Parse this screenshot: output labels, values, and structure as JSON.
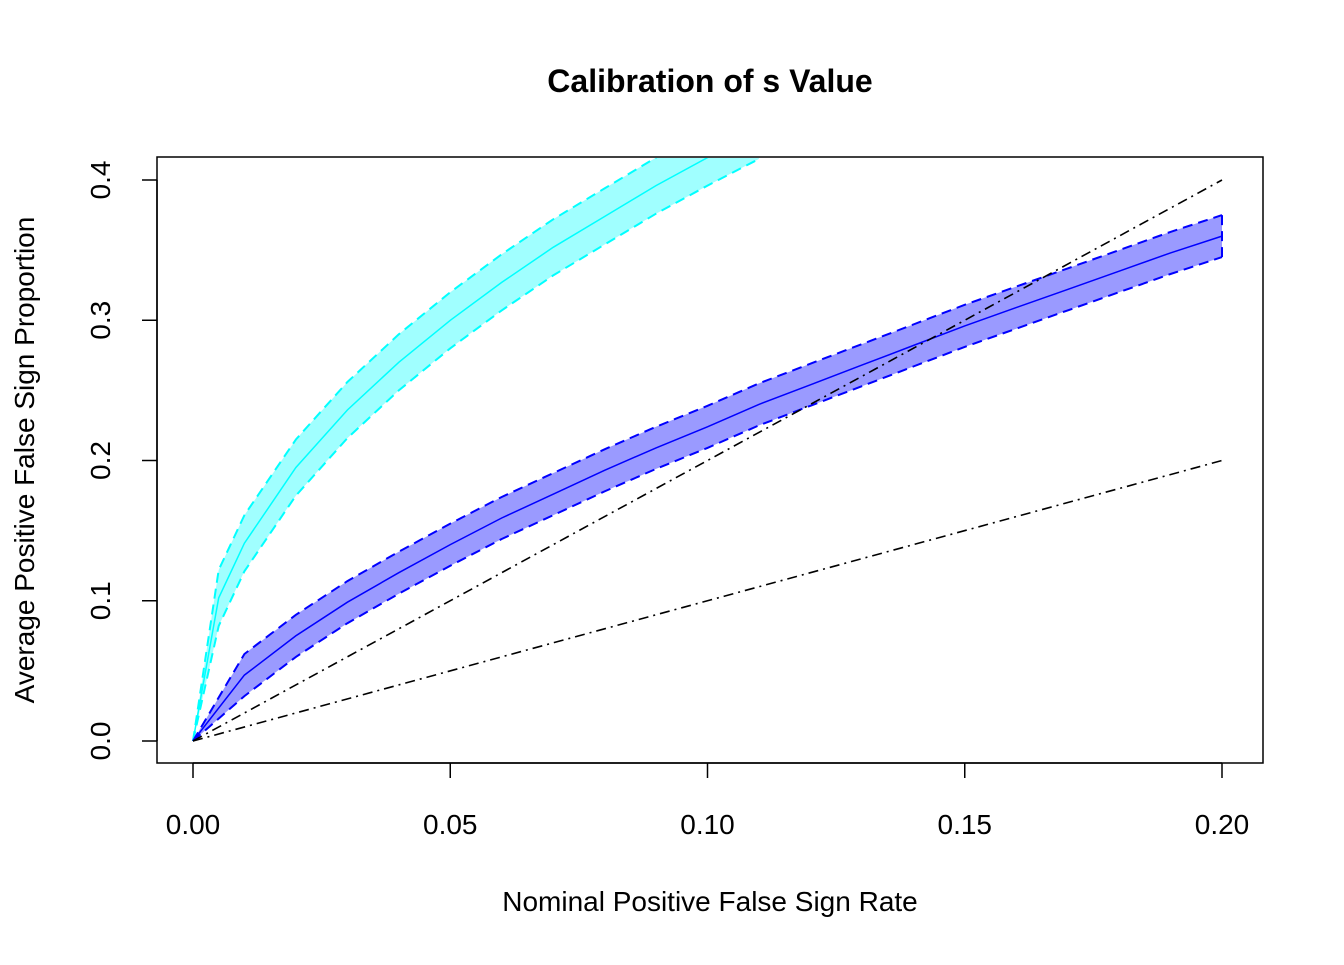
{
  "chart_data": {
    "type": "line",
    "title": "Calibration of s Value",
    "xlabel": "Nominal Positive False Sign Rate",
    "ylabel": "Average Positive False Sign Proportion",
    "xlim": [
      0,
      0.2
    ],
    "ylim": [
      0,
      0.4
    ],
    "x_ticks": [
      "0.00",
      "0.05",
      "0.10",
      "0.15",
      "0.20"
    ],
    "y_ticks": [
      "0.0",
      "0.1",
      "0.2",
      "0.3",
      "0.4"
    ],
    "grid": false,
    "series": [
      {
        "name": "cyan",
        "color": "#00ffff",
        "fill": "#a0ffff",
        "band_halfwidth": 0.02,
        "x": [
          0,
          0.005,
          0.01,
          0.02,
          0.03,
          0.04,
          0.05,
          0.06,
          0.07,
          0.08,
          0.09,
          0.1,
          0.11
        ],
        "y": [
          0,
          0.102,
          0.141,
          0.195,
          0.236,
          0.27,
          0.3,
          0.327,
          0.352,
          0.374,
          0.396,
          0.416,
          0.435
        ]
      },
      {
        "name": "blue",
        "color": "#0000ff",
        "fill": "#9a9aff",
        "band_halfwidth": 0.015,
        "x": [
          0,
          0.01,
          0.02,
          0.03,
          0.04,
          0.05,
          0.06,
          0.07,
          0.08,
          0.09,
          0.1,
          0.11,
          0.12,
          0.13,
          0.14,
          0.15,
          0.16,
          0.17,
          0.18,
          0.19,
          0.2
        ],
        "y": [
          0,
          0.047,
          0.075,
          0.099,
          0.12,
          0.14,
          0.159,
          0.176,
          0.193,
          0.209,
          0.224,
          0.24,
          0.254,
          0.268,
          0.282,
          0.296,
          0.309,
          0.322,
          0.335,
          0.348,
          0.36
        ]
      }
    ],
    "reference_lines": [
      {
        "name": "y = 2x",
        "x": [
          0,
          0.2
        ],
        "y": [
          0,
          0.4
        ],
        "color": "#000000"
      },
      {
        "name": "y = x",
        "x": [
          0,
          0.2
        ],
        "y": [
          0,
          0.2
        ],
        "color": "#000000"
      }
    ]
  }
}
